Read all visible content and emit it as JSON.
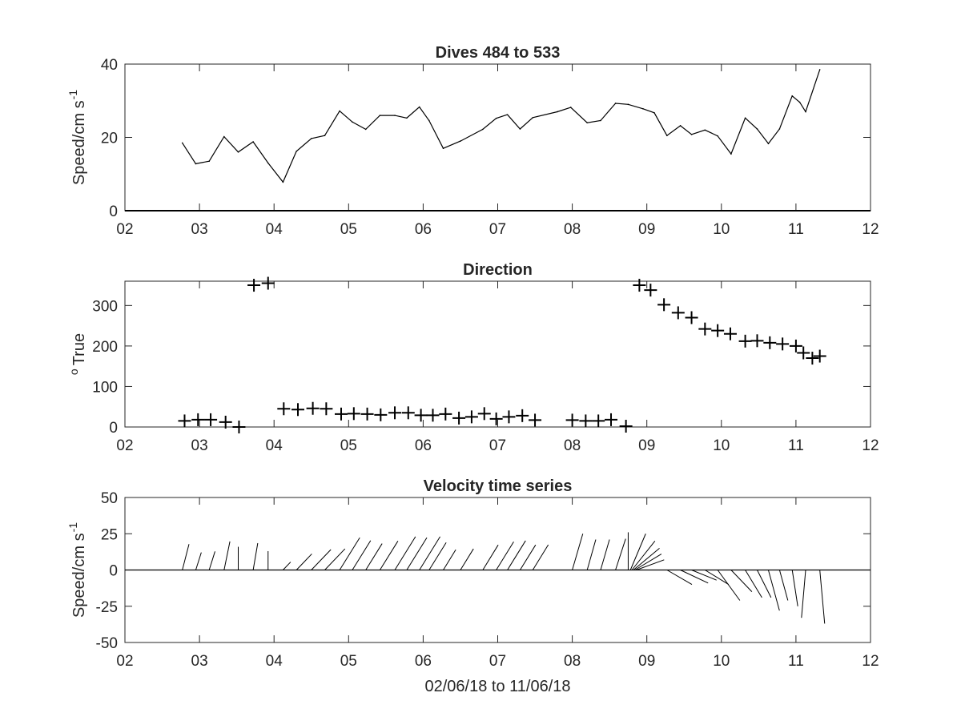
{
  "chart_data": [
    {
      "type": "line",
      "title": "Dives 484 to 533",
      "ylabel": "Speed/cm s",
      "ylabel_superscript": "-1",
      "xlim": [
        2,
        12
      ],
      "ylim": [
        0,
        40
      ],
      "xticks": [
        2,
        3,
        4,
        5,
        6,
        7,
        8,
        9,
        10,
        11,
        12
      ],
      "xtick_labels": [
        "02",
        "03",
        "04",
        "05",
        "06",
        "07",
        "08",
        "09",
        "10",
        "11",
        "12"
      ],
      "yticks": [
        0,
        20,
        40
      ],
      "ytick_labels": [
        "0",
        "20",
        "40"
      ],
      "x": [
        2.77,
        2.95,
        3.13,
        3.33,
        3.52,
        3.72,
        3.92,
        4.12,
        4.3,
        4.5,
        4.68,
        4.88,
        5.05,
        5.23,
        5.42,
        5.62,
        5.78,
        5.95,
        6.08,
        6.27,
        6.5,
        6.8,
        6.98,
        7.13,
        7.3,
        7.47,
        7.8,
        7.98,
        8.2,
        8.38,
        8.58,
        8.75,
        8.95,
        9.1,
        9.27,
        9.45,
        9.6,
        9.78,
        9.95,
        10.13,
        10.32,
        10.48,
        10.63,
        10.78,
        10.95,
        11.05,
        11.13,
        11.32
      ],
      "y": [
        18.5,
        12.8,
        13.5,
        20.2,
        16,
        18.8,
        13,
        7.8,
        16.2,
        19.7,
        20.5,
        27.2,
        24.2,
        22.2,
        26,
        26,
        25.3,
        28.3,
        24.6,
        17,
        19,
        22.2,
        25.2,
        26.2,
        22.3,
        25.4,
        27,
        28.2,
        24,
        24.6,
        29.3,
        29,
        27.8,
        26.7,
        20.5,
        23.2,
        20.8,
        22,
        20.4,
        15.5,
        25.3,
        22.3,
        18.3,
        22.3,
        31.3,
        29.6,
        27,
        38.5
      ]
    },
    {
      "type": "scatter",
      "title": "Direction",
      "ylabel": "True",
      "ylabel_prefix": "o",
      "marker": "+",
      "xlim": [
        2,
        12
      ],
      "ylim": [
        0,
        360
      ],
      "xticks": [
        2,
        3,
        4,
        5,
        6,
        7,
        8,
        9,
        10,
        11,
        12
      ],
      "xtick_labels": [
        "02",
        "03",
        "04",
        "05",
        "06",
        "07",
        "08",
        "09",
        "10",
        "11",
        "12"
      ],
      "yticks": [
        0,
        100,
        200,
        300
      ],
      "ytick_labels": [
        "0",
        "100",
        "200",
        "300"
      ],
      "x": [
        2.8,
        2.98,
        3.15,
        3.35,
        3.53,
        3.73,
        3.92,
        4.13,
        4.32,
        4.52,
        4.7,
        4.9,
        5.07,
        5.25,
        5.43,
        5.62,
        5.8,
        5.97,
        6.13,
        6.3,
        6.48,
        6.65,
        6.82,
        6.98,
        7.15,
        7.33,
        7.5,
        8.0,
        8.18,
        8.35,
        8.52,
        8.72,
        8.9,
        9.05,
        9.23,
        9.42,
        9.6,
        9.78,
        9.95,
        10.12,
        10.32,
        10.48,
        10.65,
        10.82,
        11.0,
        11.1,
        11.22,
        11.32
      ],
      "y": [
        15,
        18,
        18,
        12,
        0,
        350,
        355,
        45,
        43,
        46,
        45,
        32,
        33,
        32,
        30,
        35,
        35,
        29,
        29,
        32,
        22,
        25,
        33,
        20,
        25,
        28,
        17,
        17,
        15,
        15,
        18,
        2,
        350,
        338,
        302,
        282,
        270,
        242,
        238,
        230,
        212,
        213,
        208,
        205,
        200,
        183,
        170,
        175
      ]
    },
    {
      "type": "vector",
      "title": "Velocity time series",
      "xlabel": "02/06/18 to 11/06/18",
      "ylabel": "Speed/cm s",
      "ylabel_superscript": "-1",
      "xlim": [
        2,
        12
      ],
      "ylim": [
        -50,
        50
      ],
      "xticks": [
        2,
        3,
        4,
        5,
        6,
        7,
        8,
        9,
        10,
        11,
        12
      ],
      "xtick_labels": [
        "02",
        "03",
        "04",
        "05",
        "06",
        "07",
        "08",
        "09",
        "10",
        "11",
        "12"
      ],
      "yticks": [
        -50,
        -25,
        0,
        25,
        50
      ],
      "ytick_labels": [
        "-50",
        "-25",
        "0",
        "25",
        "50"
      ],
      "u_scale_days_per_unit": 0.0186,
      "x": [
        2.77,
        2.95,
        3.13,
        3.33,
        3.52,
        3.72,
        3.92,
        4.12,
        4.3,
        4.5,
        4.68,
        4.88,
        5.05,
        5.23,
        5.42,
        5.62,
        5.78,
        5.95,
        6.08,
        6.27,
        6.5,
        6.8,
        6.98,
        7.13,
        7.3,
        7.47,
        8.0,
        8.2,
        8.38,
        8.58,
        8.75,
        8.78,
        8.8,
        8.82,
        8.84,
        8.86,
        9.27,
        9.45,
        9.6,
        9.78,
        9.95,
        10.13,
        10.32,
        10.48,
        10.63,
        10.78,
        10.95,
        11.13,
        11.32
      ],
      "u": [
        4.8,
        4.0,
        4.2,
        4.2,
        0,
        3.3,
        0,
        5.5,
        11.1,
        14.1,
        14.6,
        14.5,
        13.2,
        11.8,
        13.0,
        14.9,
        14.5,
        14.9,
        12.3,
        9.0,
        9.4,
        11.1,
        12.6,
        13.1,
        11.2,
        11.2,
        7.6,
        6.2,
        6.4,
        7.3,
        0,
        11.0,
        16.6,
        18.8,
        19.1,
        20.0,
        18.0,
        20.0,
        18.0,
        17.0,
        16.0,
        15.0,
        12.0,
        10.0,
        8.0,
        6.0,
        4.0,
        -3.0,
        3.5
      ],
      "v": [
        17.8,
        12.1,
        12.8,
        19.7,
        16,
        18.5,
        13,
        5.5,
        11.1,
        14.1,
        14.6,
        22.3,
        20.3,
        18.2,
        20.0,
        23.0,
        22.3,
        23.0,
        18.9,
        14.0,
        14.6,
        17.3,
        19.5,
        20.2,
        17.3,
        17.4,
        25.0,
        21.0,
        21.0,
        21.5,
        26.0,
        25.0,
        20.0,
        15.0,
        11.0,
        7.0,
        -10.0,
        -9.0,
        -7.0,
        -10.0,
        -21.0,
        -15.0,
        -19.0,
        -19.0,
        -28.0,
        -21.0,
        -25.0,
        -33.0,
        -37.0
      ]
    }
  ]
}
